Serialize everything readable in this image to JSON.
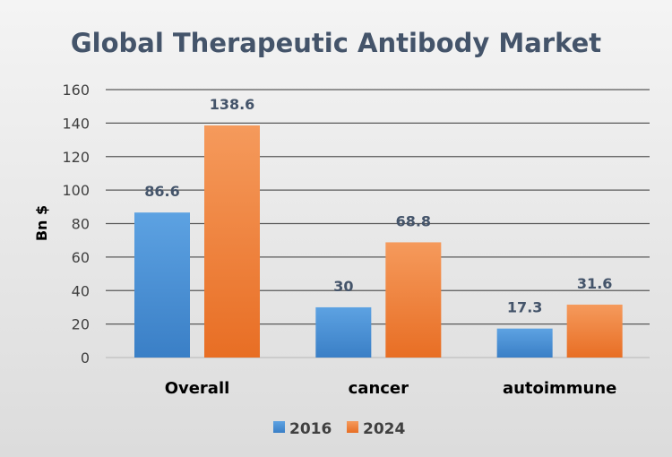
{
  "chart_data": {
    "type": "bar",
    "title": "Global Therapeutic Antibody Market",
    "xlabel": "",
    "ylabel": "Bn $",
    "ylim": [
      0,
      160
    ],
    "yticks": [
      0,
      20,
      40,
      60,
      80,
      100,
      120,
      140,
      160
    ],
    "categories": [
      "Overall",
      "cancer",
      "autoimmune"
    ],
    "series": [
      {
        "name": "2016",
        "values": [
          86.6,
          30,
          17.3
        ],
        "labels": [
          "86.6",
          "30",
          "17.3"
        ],
        "color": "#4a8fd4"
      },
      {
        "name": "2024",
        "values": [
          138.6,
          68.8,
          31.6
        ],
        "labels": [
          "138.6",
          "68.8",
          "31.6"
        ],
        "color": "#ef7f3a"
      }
    ],
    "grid": true,
    "legend": "bottom"
  }
}
